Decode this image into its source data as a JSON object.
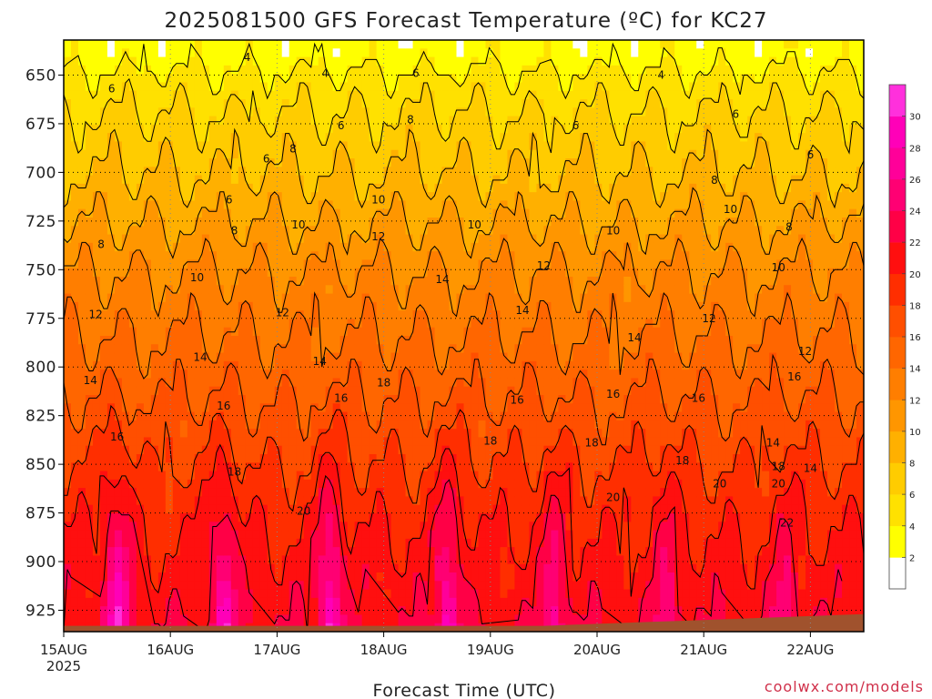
{
  "chart_data": {
    "type": "heatmap",
    "title": "2025081500 GFS Forecast Temperature (ºC) for KC27",
    "xlabel": "Forecast Time (UTC)",
    "ylabel": "",
    "y_inverted": true,
    "ylim": [
      936,
      632
    ],
    "xlim": [
      0,
      7.5
    ],
    "x_ticks": [
      {
        "x": 0,
        "label": "15AUG",
        "sublabel": "2025"
      },
      {
        "x": 1,
        "label": "16AUG"
      },
      {
        "x": 2,
        "label": "17AUG"
      },
      {
        "x": 3,
        "label": "18AUG"
      },
      {
        "x": 4,
        "label": "19AUG"
      },
      {
        "x": 5,
        "label": "20AUG"
      },
      {
        "x": 6,
        "label": "21AUG"
      },
      {
        "x": 7,
        "label": "22AUG"
      }
    ],
    "y_ticks": [
      650,
      675,
      700,
      725,
      750,
      775,
      800,
      825,
      850,
      875,
      900,
      925
    ],
    "grid": true,
    "contour_interval": 2,
    "pressure_levels": [
      640,
      650,
      675,
      700,
      725,
      750,
      775,
      800,
      825,
      850,
      875,
      900,
      925,
      935
    ],
    "level_base_temps": [
      3,
      4.5,
      6.5,
      8,
      10,
      12,
      13.5,
      15,
      16.5,
      18,
      19.5,
      20.5,
      21.5,
      22
    ],
    "diurnal_peaks": [
      {
        "x": 0.5,
        "amp": 9,
        "near_surface_temp": 30
      },
      {
        "x": 1.5,
        "amp": 8,
        "near_surface_temp": 28
      },
      {
        "x": 2.5,
        "amp": 9,
        "near_surface_temp": 30
      },
      {
        "x": 3.6,
        "amp": 8,
        "near_surface_temp": 29
      },
      {
        "x": 4.6,
        "amp": 6,
        "near_surface_temp": 27
      },
      {
        "x": 5.65,
        "amp": 5,
        "near_surface_temp": 24
      },
      {
        "x": 6.75,
        "amp": 4,
        "near_surface_temp": 25
      }
    ],
    "contour_labels": [
      {
        "x": 1.72,
        "p": 641,
        "label": "4"
      },
      {
        "x": 2.45,
        "p": 649,
        "label": "4"
      },
      {
        "x": 5.6,
        "p": 650,
        "label": "4"
      },
      {
        "x": 0.45,
        "p": 657,
        "label": "6"
      },
      {
        "x": 3.3,
        "p": 649,
        "label": "6"
      },
      {
        "x": 2.6,
        "p": 676,
        "label": "6"
      },
      {
        "x": 4.8,
        "p": 676,
        "label": "6"
      },
      {
        "x": 6.3,
        "p": 670,
        "label": "6"
      },
      {
        "x": 7.0,
        "p": 691,
        "label": "6"
      },
      {
        "x": 1.9,
        "p": 693,
        "label": "6"
      },
      {
        "x": 1.55,
        "p": 714,
        "label": "6"
      },
      {
        "x": 3.25,
        "p": 673,
        "label": "8"
      },
      {
        "x": 2.15,
        "p": 688,
        "label": "8"
      },
      {
        "x": 6.1,
        "p": 704,
        "label": "8"
      },
      {
        "x": 6.8,
        "p": 728,
        "label": "8"
      },
      {
        "x": 1.6,
        "p": 730,
        "label": "8"
      },
      {
        "x": 0.35,
        "p": 737,
        "label": "8"
      },
      {
        "x": 2.95,
        "p": 714,
        "label": "10"
      },
      {
        "x": 2.2,
        "p": 727,
        "label": "10"
      },
      {
        "x": 3.85,
        "p": 727,
        "label": "10"
      },
      {
        "x": 5.15,
        "p": 730,
        "label": "10"
      },
      {
        "x": 6.25,
        "p": 719,
        "label": "10"
      },
      {
        "x": 6.7,
        "p": 749,
        "label": "10"
      },
      {
        "x": 1.25,
        "p": 754,
        "label": "10"
      },
      {
        "x": 2.95,
        "p": 733,
        "label": "12"
      },
      {
        "x": 4.5,
        "p": 748,
        "label": "12"
      },
      {
        "x": 0.3,
        "p": 773,
        "label": "12"
      },
      {
        "x": 2.05,
        "p": 772,
        "label": "12"
      },
      {
        "x": 6.05,
        "p": 775,
        "label": "12"
      },
      {
        "x": 6.95,
        "p": 792,
        "label": "12"
      },
      {
        "x": 3.55,
        "p": 755,
        "label": "14"
      },
      {
        "x": 4.3,
        "p": 771,
        "label": "14"
      },
      {
        "x": 5.35,
        "p": 785,
        "label": "14"
      },
      {
        "x": 1.28,
        "p": 795,
        "label": "14"
      },
      {
        "x": 2.4,
        "p": 797,
        "label": "14"
      },
      {
        "x": 0.25,
        "p": 807,
        "label": "14"
      },
      {
        "x": 6.65,
        "p": 839,
        "label": "14"
      },
      {
        "x": 7.0,
        "p": 852,
        "label": "14"
      },
      {
        "x": 6.85,
        "p": 805,
        "label": "16"
      },
      {
        "x": 5.15,
        "p": 814,
        "label": "16"
      },
      {
        "x": 4.25,
        "p": 817,
        "label": "16"
      },
      {
        "x": 5.95,
        "p": 816,
        "label": "16"
      },
      {
        "x": 2.6,
        "p": 816,
        "label": "16"
      },
      {
        "x": 1.5,
        "p": 820,
        "label": "16"
      },
      {
        "x": 0.5,
        "p": 836,
        "label": "16"
      },
      {
        "x": 3.0,
        "p": 808,
        "label": "18"
      },
      {
        "x": 4.0,
        "p": 838,
        "label": "18"
      },
      {
        "x": 4.95,
        "p": 839,
        "label": "18"
      },
      {
        "x": 5.8,
        "p": 848,
        "label": "18"
      },
      {
        "x": 6.7,
        "p": 851,
        "label": "18"
      },
      {
        "x": 1.6,
        "p": 854,
        "label": "18"
      },
      {
        "x": 2.25,
        "p": 874,
        "label": "20"
      },
      {
        "x": 5.15,
        "p": 867,
        "label": "20"
      },
      {
        "x": 6.15,
        "p": 860,
        "label": "20"
      },
      {
        "x": 6.7,
        "p": 860,
        "label": "20"
      },
      {
        "x": 6.78,
        "p": 880,
        "label": "22"
      }
    ],
    "colorbar": {
      "ticks": [
        2,
        4,
        6,
        8,
        10,
        12,
        14,
        16,
        18,
        20,
        22,
        24,
        26,
        28,
        30
      ],
      "colors": [
        "#ffffff",
        "#ffff00",
        "#ffe100",
        "#ffcc00",
        "#ffb000",
        "#ff9600",
        "#ff7e00",
        "#ff6600",
        "#ff4f00",
        "#ff2e00",
        "#ff0f0f",
        "#ff0046",
        "#ff0073",
        "#ff0099",
        "#ff00b8",
        "#ff30dc"
      ]
    },
    "terrain_color": "#a0522d"
  },
  "watermark": "coolwx.com/models"
}
